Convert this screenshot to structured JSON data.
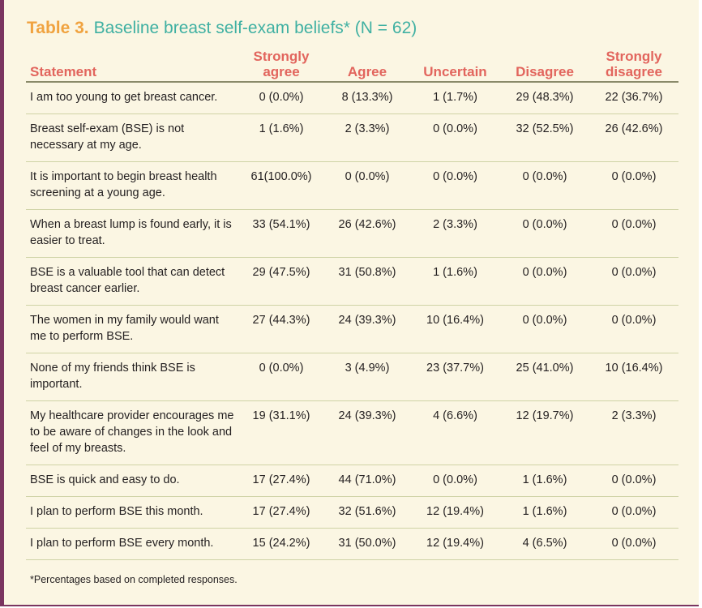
{
  "table": {
    "label": "Table 3.",
    "title": "Baseline breast self-exam beliefs* (N = 62)",
    "headers": [
      "Statement",
      "Strongly agree",
      "Agree",
      "Uncertain",
      "Disagree",
      "Strongly disagree"
    ],
    "rows": [
      [
        "I am too young to get breast cancer.",
        "0 (0.0%)",
        "8 (13.3%)",
        "1 (1.7%)",
        "29 (48.3%)",
        "22 (36.7%)"
      ],
      [
        "Breast self-exam (BSE) is not necessary at my age.",
        "1 (1.6%)",
        "2 (3.3%)",
        "0 (0.0%)",
        "32 (52.5%)",
        "26 (42.6%)"
      ],
      [
        "It is important to begin breast health screening at a young age.",
        "61(100.0%)",
        "0 (0.0%)",
        "0 (0.0%)",
        "0 (0.0%)",
        "0 (0.0%)"
      ],
      [
        "When a breast lump is found early, it is easier to treat.",
        "33 (54.1%)",
        "26 (42.6%)",
        "2 (3.3%)",
        "0 (0.0%)",
        "0 (0.0%)"
      ],
      [
        "BSE is a valuable tool that can detect breast cancer earlier.",
        "29 (47.5%)",
        "31 (50.8%)",
        "1 (1.6%)",
        "0 (0.0%)",
        "0 (0.0%)"
      ],
      [
        "The women in my family would want me to perform BSE.",
        "27 (44.3%)",
        "24 (39.3%)",
        "10 (16.4%)",
        "0 (0.0%)",
        "0 (0.0%)"
      ],
      [
        "None of my friends think BSE is important.",
        "0 (0.0%)",
        "3 (4.9%)",
        "23 (37.7%)",
        "25 (41.0%)",
        "10 (16.4%)"
      ],
      [
        "My healthcare provider encourages me to be aware of changes in the look and feel of my breasts.",
        "19 (31.1%)",
        "24 (39.3%)",
        "4 (6.6%)",
        "12 (19.7%)",
        "2 (3.3%)"
      ],
      [
        "BSE is quick and easy to do.",
        "17 (27.4%)",
        "44 (71.0%)",
        "0 (0.0%)",
        "1 (1.6%)",
        "0 (0.0%)"
      ],
      [
        "I plan to perform BSE this month.",
        "17 (27.4%)",
        "32 (51.6%)",
        "12 (19.4%)",
        "1 (1.6%)",
        "0 (0.0%)"
      ],
      [
        "I plan to perform BSE every month.",
        "15 (24.2%)",
        "31 (50.0%)",
        "12 (19.4%)",
        "4 (6.5%)",
        "0 (0.0%)"
      ]
    ],
    "footnote": "*Percentages based on completed responses."
  },
  "colors": {
    "border": "#7a3560",
    "background": "#fbf6e3",
    "title_label": "#f0a340",
    "title_text": "#3fb0a2",
    "header_text": "#e2655d",
    "row_rule": "#cfd3a6"
  }
}
